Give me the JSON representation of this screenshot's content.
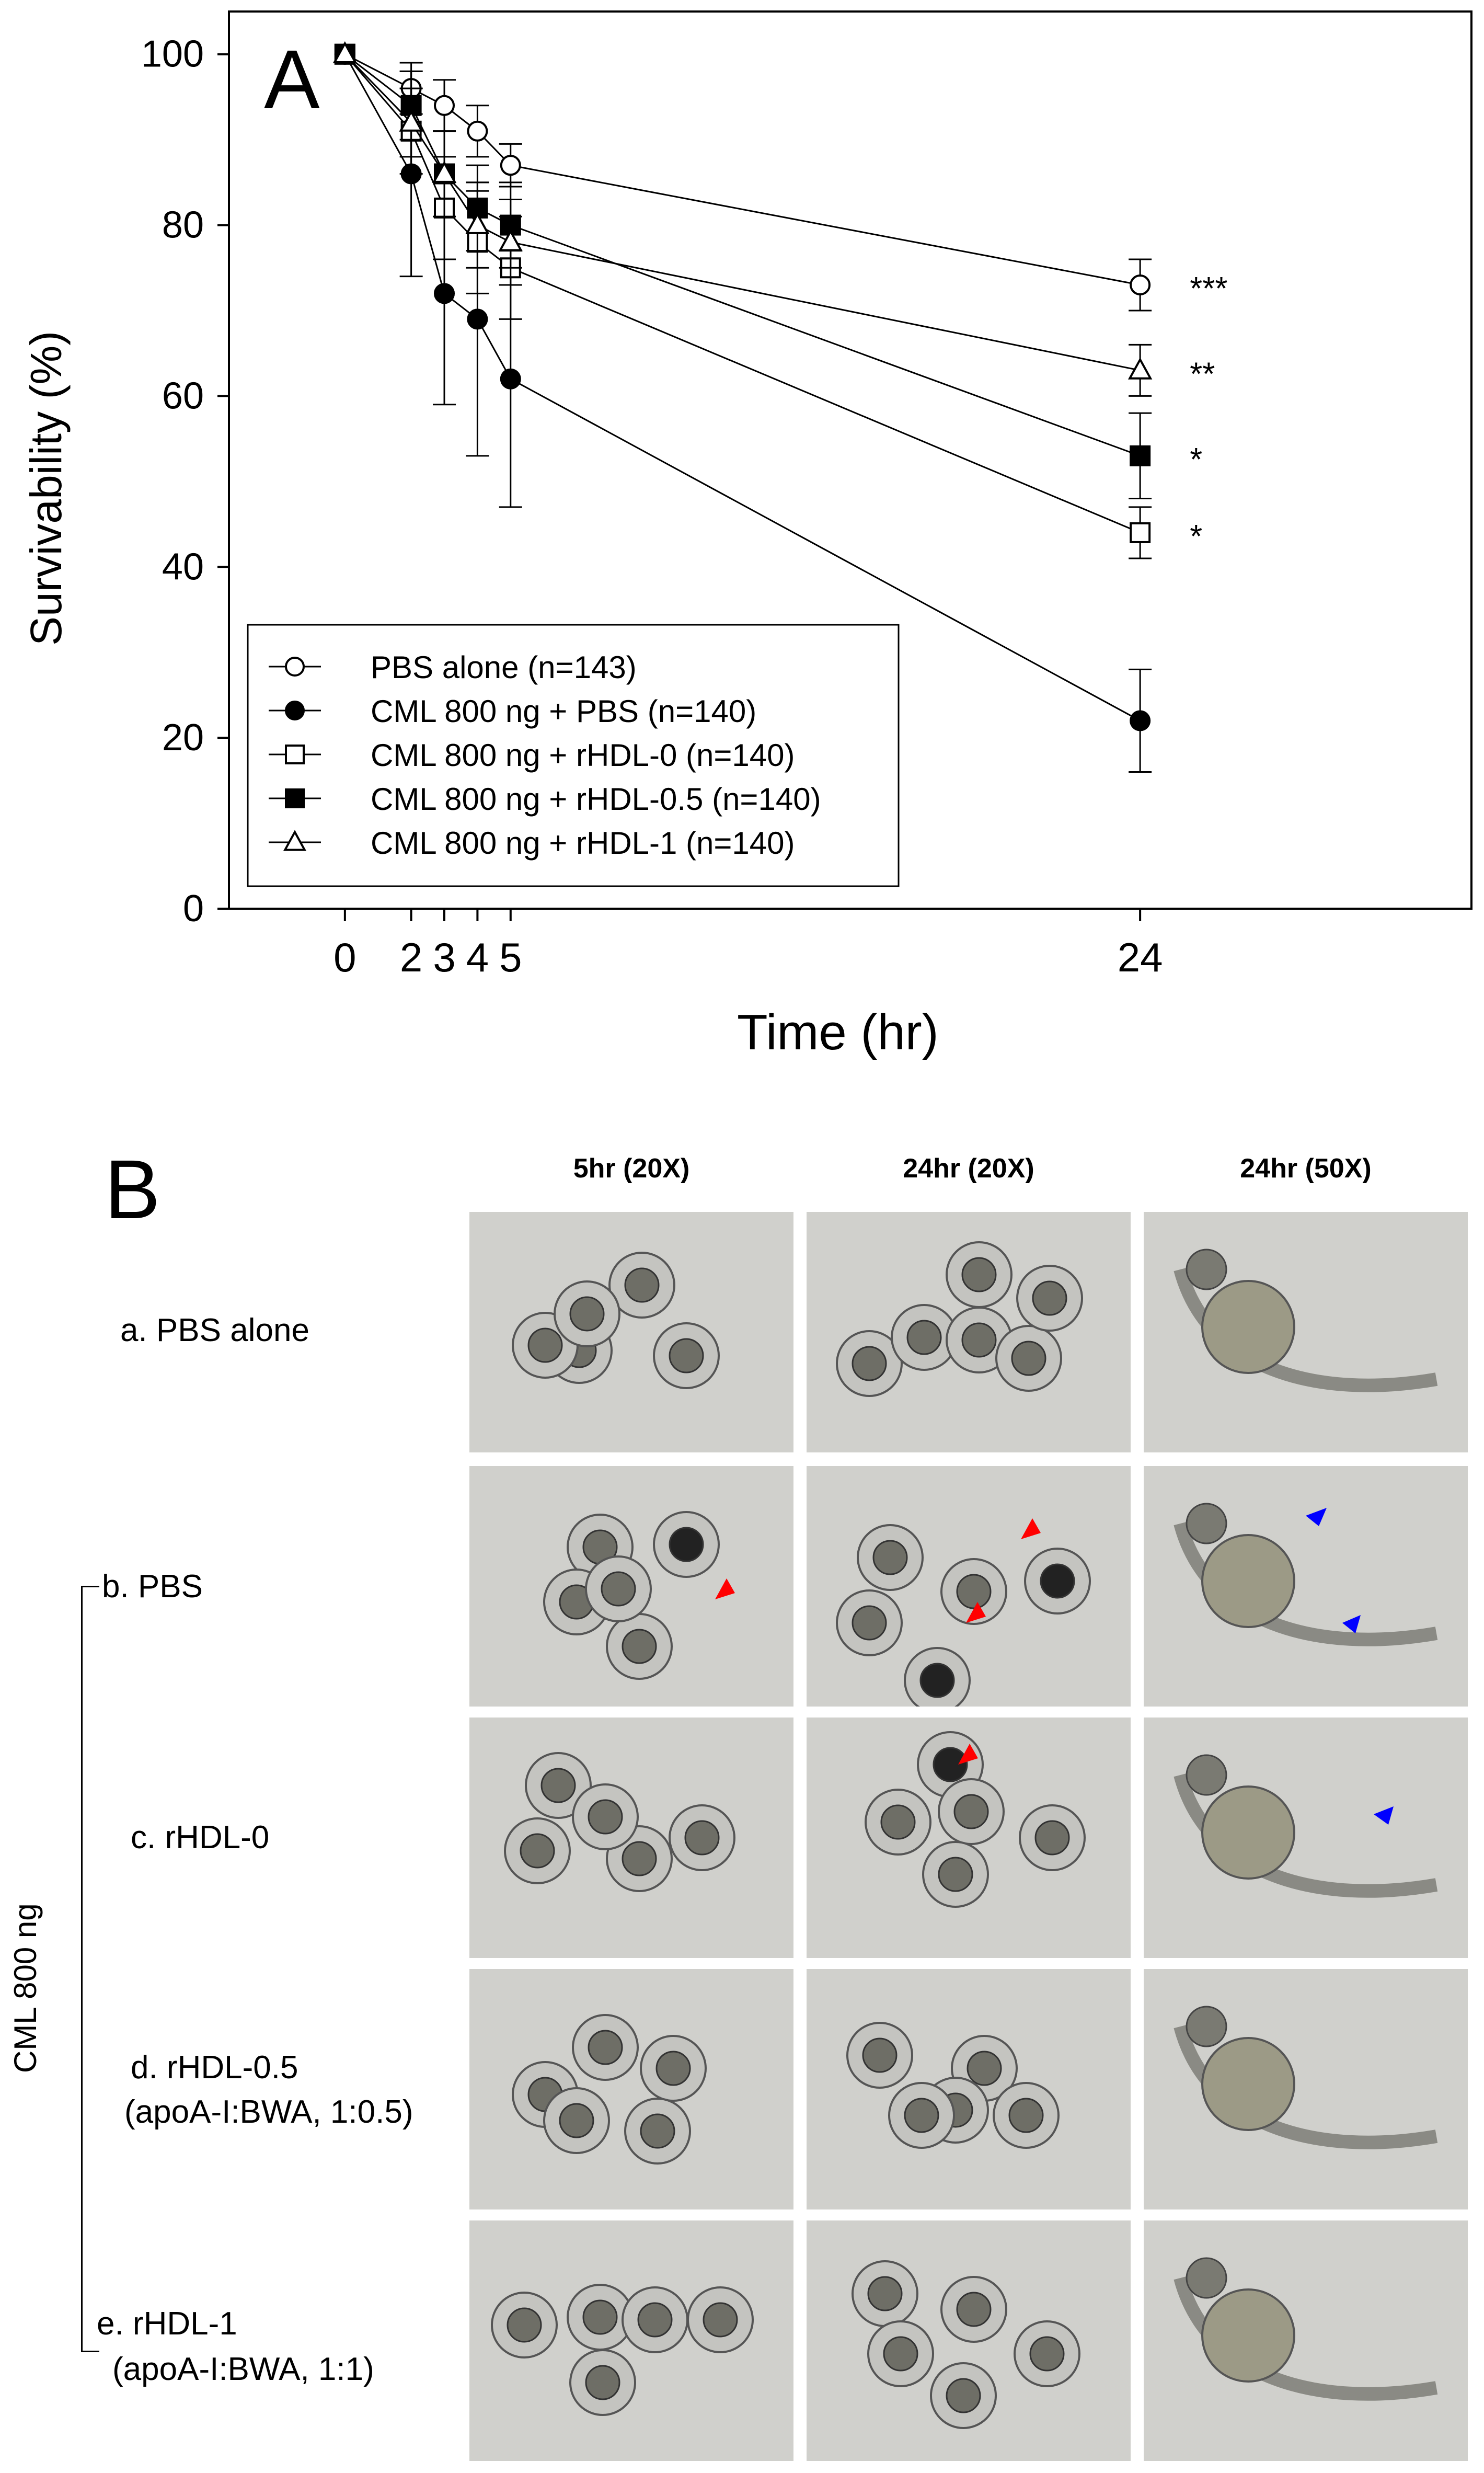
{
  "panel_a": {
    "letter": "A",
    "chart_data": {
      "type": "line",
      "xlabel": "Time (hr)",
      "ylabel": "Survivability (%)",
      "xlim": [
        -3.5,
        34
      ],
      "ylim": [
        0,
        105
      ],
      "x_ticks": [
        0,
        2,
        3,
        4,
        5,
        24
      ],
      "y_ticks": [
        0,
        20,
        40,
        60,
        80,
        100
      ],
      "legend_position": "bottom-left",
      "series": [
        {
          "name": "PBS alone (n=143)",
          "marker": "circle-open",
          "x": [
            0,
            2,
            3,
            4,
            5,
            24
          ],
          "y": [
            100,
            96,
            94,
            91,
            87,
            73
          ],
          "err": [
            0,
            3,
            3,
            3,
            2.5,
            3
          ],
          "significance": "***"
        },
        {
          "name": "CML 800 ng + PBS (n=140)",
          "marker": "circle-filled",
          "x": [
            0,
            2,
            3,
            4,
            5,
            24
          ],
          "y": [
            100,
            86,
            72,
            69,
            62,
            22
          ],
          "err": [
            0,
            12,
            13,
            16,
            15,
            6
          ],
          "significance": ""
        },
        {
          "name": "CML 800 ng + rHDL-0 (n=140)",
          "marker": "square-open",
          "x": [
            0,
            2,
            3,
            4,
            5,
            24
          ],
          "y": [
            100,
            91,
            82,
            78,
            75,
            44
          ],
          "err": [
            0,
            5,
            6,
            6,
            6,
            3
          ],
          "significance": "*"
        },
        {
          "name": "CML 800 ng + rHDL-0.5 (n=140)",
          "marker": "square-filled",
          "x": [
            0,
            2,
            3,
            4,
            5,
            24
          ],
          "y": [
            100,
            94,
            86,
            82,
            80,
            53
          ],
          "err": [
            0,
            4,
            5,
            5,
            5,
            5
          ],
          "significance": "*"
        },
        {
          "name": "CML 800 ng + rHDL-1 (n=140)",
          "marker": "triangle-open",
          "x": [
            0,
            2,
            3,
            4,
            5,
            24
          ],
          "y": [
            100,
            92,
            86,
            80,
            78,
            63
          ],
          "err": [
            0,
            4,
            5,
            5,
            5,
            3
          ],
          "significance": "**"
        }
      ]
    }
  },
  "panel_b": {
    "letter": "B",
    "column_headers": [
      "5hr (20X)",
      "24hr (20X)",
      "24hr (50X)"
    ],
    "group_label": "CML 800 ng",
    "rows": [
      {
        "label": "a. PBS alone",
        "sublabel": ""
      },
      {
        "label": "b. PBS",
        "sublabel": ""
      },
      {
        "label": "c. rHDL-0",
        "sublabel": ""
      },
      {
        "label": "d. rHDL-0.5",
        "sublabel": "(apoA-I:BWA, 1:0.5)"
      },
      {
        "label": "e. rHDL-1",
        "sublabel": "(apoA-I:BWA, 1:1)"
      }
    ],
    "colors": {
      "arrow_red": "#ff0000",
      "arrow_blue": "#0000ff",
      "photo_bg": "#d0d0cc"
    }
  }
}
